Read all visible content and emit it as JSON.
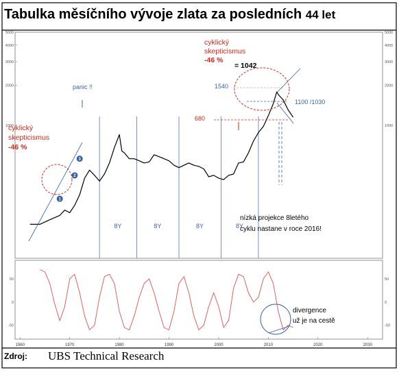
{
  "title": {
    "main": "Tabulka měsíčního vývoje zlata za posledních",
    "years": "44 let"
  },
  "source": {
    "label": "Zdroj:",
    "value": "UBS Technical Research"
  },
  "colors": {
    "price": "#000000",
    "oscillator": "#d9534f",
    "annot_red": "#d0261c",
    "annot_blue": "#3a5fa8",
    "cycle_line": "#6b82c4"
  },
  "chart_data": [
    {
      "type": "line",
      "name": "gold-price",
      "scale": "log",
      "y_ticks": [
        5000,
        4000,
        3000,
        2000,
        1000
      ],
      "xlim": [
        1959,
        2033
      ],
      "ylim": [
        100,
        5000
      ],
      "x": [
        1962,
        1964,
        1966,
        1968,
        1969,
        1970,
        1971,
        1972,
        1973,
        1974,
        1975,
        1976,
        1977,
        1978,
        1979,
        1980,
        1980.5,
        1981,
        1982,
        1983,
        1984,
        1985,
        1986,
        1987,
        1988,
        1989,
        1990,
        1991,
        1992,
        1993,
        1994,
        1995,
        1996,
        1997,
        1998,
        1999,
        2000,
        2001,
        2002,
        2003,
        2004,
        2005,
        2006,
        2007,
        2008,
        2009,
        2010,
        2011,
        2011.7,
        2012,
        2013,
        2014,
        2015
      ],
      "y": [
        180,
        180,
        195,
        210,
        230,
        220,
        250,
        300,
        400,
        460,
        420,
        380,
        430,
        520,
        680,
        850,
        640,
        620,
        560,
        560,
        540,
        520,
        530,
        600,
        580,
        560,
        540,
        500,
        480,
        500,
        520,
        500,
        490,
        470,
        410,
        420,
        400,
        390,
        420,
        430,
        520,
        530,
        620,
        760,
        880,
        980,
        1180,
        1450,
        1780,
        1700,
        1550,
        1300,
        1150
      ],
      "annotations": [
        {
          "label": "1",
          "x": 1968,
          "y": 280
        },
        {
          "label": "2",
          "x": 1971,
          "y": 420
        },
        {
          "label": "3",
          "x": 1972,
          "y": 560
        }
      ],
      "cycle_labels": [
        "8Y",
        "8Y",
        "8Y",
        "8Y"
      ]
    },
    {
      "type": "line",
      "name": "oscillator",
      "y_ticks": [
        50,
        0,
        -50
      ],
      "ylim": [
        -80,
        90
      ],
      "xlim": [
        1959,
        2033
      ],
      "x_tick_labels": [
        "1960",
        "1970",
        "1980",
        "1990",
        "2000",
        "2010",
        "2020",
        "2030"
      ],
      "x": [
        1964,
        1965,
        1966,
        1967,
        1968,
        1969,
        1970,
        1971,
        1972,
        1973,
        1974,
        1975,
        1976,
        1977,
        1978,
        1979,
        1980,
        1981,
        1982,
        1983,
        1984,
        1985,
        1986,
        1987,
        1988,
        1989,
        1990,
        1991,
        1992,
        1993,
        1994,
        1995,
        1996,
        1997,
        1998,
        1999,
        2000,
        2001,
        2002,
        2003,
        2004,
        2005,
        2006,
        2007,
        2008,
        2009,
        2010,
        2011,
        2012,
        2013,
        2014,
        2015
      ],
      "y": [
        70,
        65,
        40,
        -5,
        -40,
        -10,
        50,
        60,
        20,
        -30,
        -60,
        -50,
        10,
        55,
        60,
        40,
        -20,
        -55,
        -60,
        -30,
        10,
        40,
        50,
        20,
        -20,
        -55,
        -60,
        -20,
        40,
        55,
        20,
        -30,
        -60,
        -50,
        -10,
        20,
        -10,
        -55,
        -40,
        30,
        60,
        55,
        20,
        0,
        10,
        50,
        65,
        40,
        -20,
        -60,
        -50,
        -55
      ]
    }
  ],
  "labels": {
    "cyc_left": [
      "cyklický",
      "skepticismus",
      "-46 %"
    ],
    "cyc_top": [
      "cyklický",
      "skepticismus",
      "-46 %"
    ],
    "v1042": "= 1042",
    "panic": "panic !!",
    "v1540": "1540",
    "v680": "680",
    "v1100": "1100 /1030",
    "proj": [
      "nízká projekce 8letého",
      "cyklu nastane v roce 2016!"
    ],
    "div": [
      "divergence",
      "už je na cestě"
    ]
  }
}
